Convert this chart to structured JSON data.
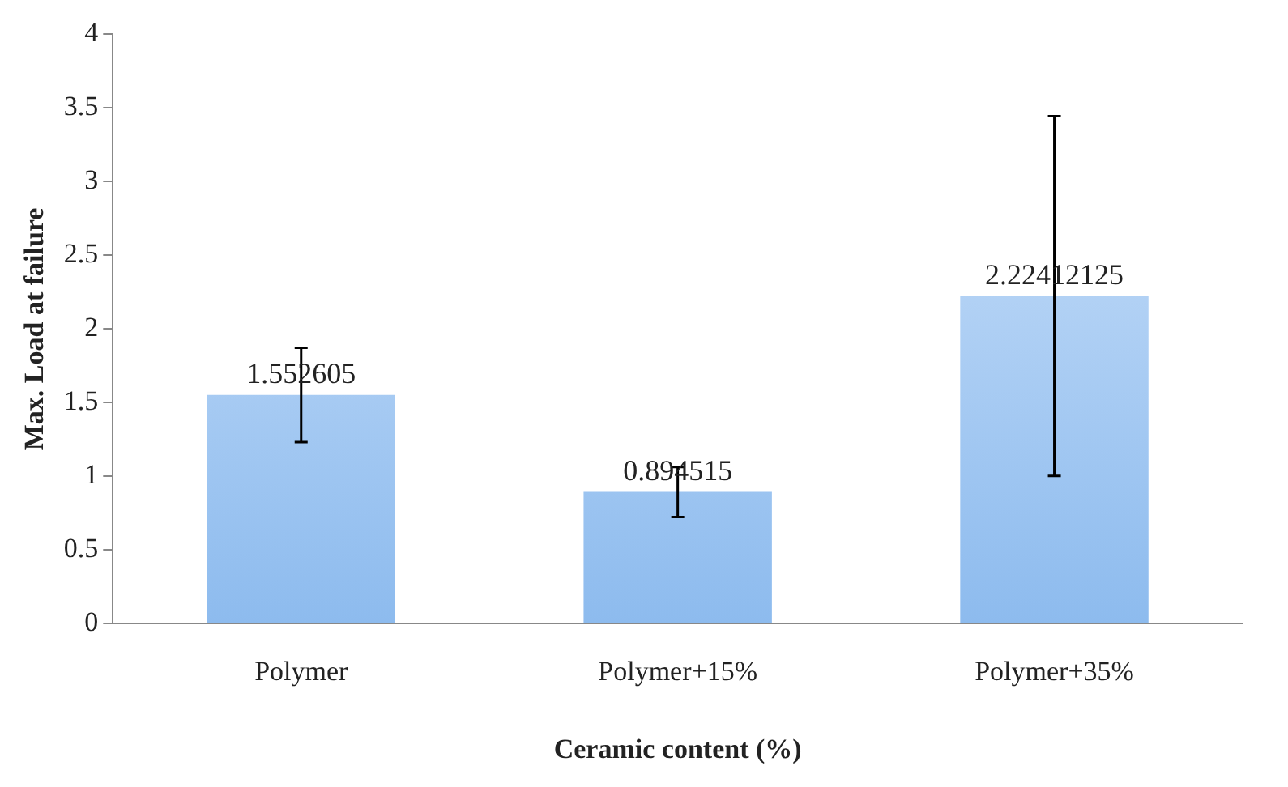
{
  "chart_data": {
    "type": "bar",
    "xlabel": "Ceramic content (%)",
    "ylabel": "Max. Load at failure",
    "categories": [
      "Polymer",
      "Polymer+15%",
      "Polymer+35%"
    ],
    "values": [
      1.552605,
      0.894515,
      2.22412125
    ],
    "errors": [
      0.32,
      0.17,
      1.22
    ],
    "color": "#8dbbee",
    "ylim": [
      0,
      4
    ],
    "yticks": [
      0,
      0.5,
      1,
      1.5,
      2,
      2.5,
      3,
      3.5,
      4
    ],
    "data_labels": true,
    "grid": false,
    "legend": false
  }
}
